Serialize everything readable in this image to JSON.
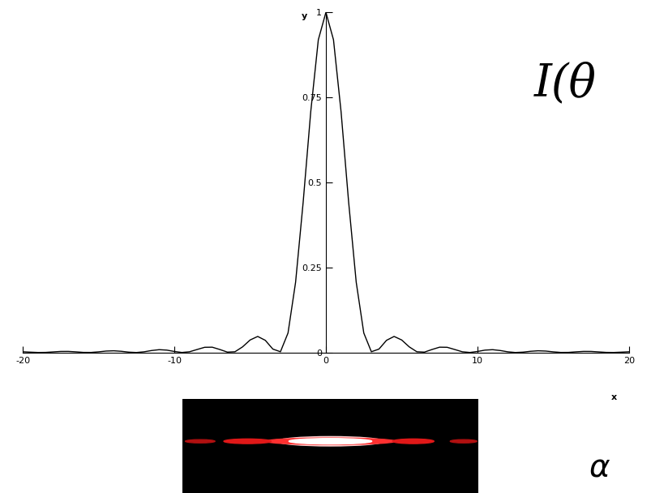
{
  "chart_data": {
    "type": "line",
    "xlabel": "x",
    "ylabel": "y",
    "annotations": [
      "I(θ",
      "α"
    ],
    "color": "#000000",
    "x": [
      -20,
      -19.5,
      -19,
      -18.5,
      -18,
      -17.5,
      -17,
      -16.5,
      -16,
      -15.5,
      -15,
      -14.5,
      -14,
      -13.5,
      -13,
      -12.5,
      -12,
      -11.5,
      -11,
      -10.5,
      -10,
      -9.5,
      -9,
      -8.5,
      -8,
      -7.5,
      -7,
      -6.5,
      -6,
      -5.5,
      -5,
      -4.5,
      -4,
      -3.5,
      -3,
      -2.5,
      -2,
      -1.5,
      -1,
      -0.5,
      0,
      0.5,
      1,
      1.5,
      2,
      2.5,
      3,
      3.5,
      4,
      4.5,
      5,
      5.5,
      6,
      6.5,
      7,
      7.5,
      8,
      8.5,
      9,
      9.5,
      10,
      10.5,
      11,
      11.5,
      12,
      12.5,
      13,
      13.5,
      14,
      14.5,
      15,
      15.5,
      16,
      16.5,
      17,
      17.5,
      18,
      18.5,
      19,
      19.5,
      20
    ],
    "values": [
      0.0021,
      0.001,
      0.0001,
      0.0003,
      0.0017,
      0.0031,
      0.0032,
      0.0019,
      0.0003,
      0.0002,
      0.0019,
      0.0042,
      0.005,
      0.0035,
      0.001,
      0.0,
      0.002,
      0.0058,
      0.0083,
      0.007,
      0.003,
      0.0001,
      0.0021,
      0.0088,
      0.0153,
      0.0156,
      0.0088,
      0.0011,
      0.0022,
      0.0165,
      0.0368,
      0.0472,
      0.0358,
      0.01,
      0.0022,
      0.0573,
      0.2067,
      0.4422,
      0.7081,
      0.9194,
      1,
      0.9194,
      0.7081,
      0.4422,
      0.2067,
      0.0573,
      0.0022,
      0.01,
      0.0358,
      0.0472,
      0.0368,
      0.0165,
      0.0022,
      0.0011,
      0.0088,
      0.0156,
      0.0153,
      0.0088,
      0.0021,
      0.0001,
      0.003,
      0.007,
      0.0083,
      0.0058,
      0.002,
      0.0,
      0.001,
      0.0035,
      0.005,
      0.0042,
      0.0019,
      0.0002,
      0.0003,
      0.0019,
      0.0032,
      0.0031,
      0.0017,
      0.0003,
      0.0001,
      0.001,
      0.0021
    ],
    "xlim": [
      -20,
      20
    ],
    "ylim": [
      0,
      1
    ],
    "xticks": [
      -20,
      -10,
      0,
      10,
      20
    ],
    "yticks": [
      0,
      0.25,
      0.5,
      0.75,
      1
    ],
    "grid": false
  }
}
